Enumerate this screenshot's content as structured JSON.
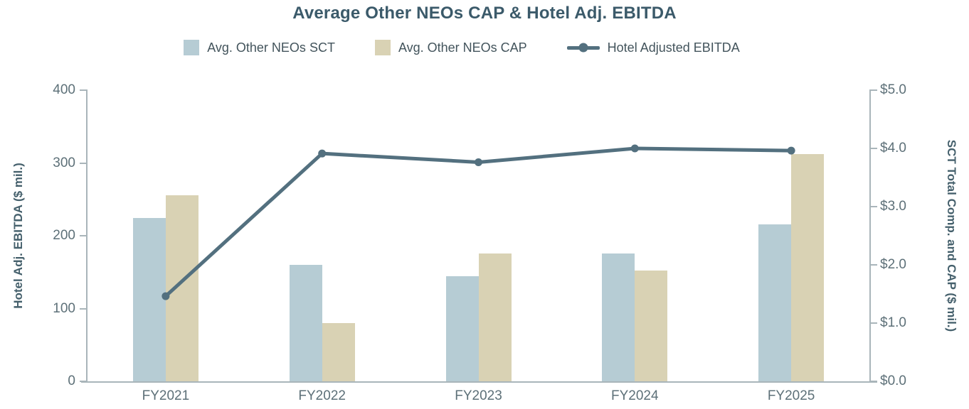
{
  "chart_data": {
    "type": "bar",
    "title": "Average Other NEOs CAP & Hotel Adj. EBITDA",
    "categories": [
      "FY2021",
      "FY2022",
      "FY2023",
      "FY2024",
      "FY2025"
    ],
    "series": [
      {
        "name": "Avg. Other NEOs SCT",
        "type": "bar",
        "axis": "right",
        "color": "#b6ccd4",
        "values": [
          2.8,
          2.0,
          1.8,
          2.2,
          2.7
        ]
      },
      {
        "name": "Avg. Other NEOs CAP",
        "type": "bar",
        "axis": "right",
        "color": "#d9d2b4",
        "values": [
          3.2,
          1.0,
          2.2,
          1.9,
          3.9
        ]
      },
      {
        "name": "Hotel Adjusted EBITDA",
        "type": "line",
        "axis": "left",
        "color": "#53707f",
        "values": [
          117,
          313,
          301,
          320,
          317
        ]
      }
    ],
    "left_axis": {
      "label": "Hotel Adj. EBITDA ($ mil.)",
      "min": 0,
      "max": 400,
      "ticks": [
        "400",
        "300",
        "200",
        "100",
        "0"
      ]
    },
    "right_axis": {
      "label": "SCT Total Comp. and CAP ($ mil.)",
      "min": 0,
      "max": 5,
      "ticks": [
        "$5.0",
        "$4.0",
        "$3.0",
        "$2.0",
        "$1.0",
        "$0.0"
      ]
    },
    "legend_position": "top",
    "grid": "off"
  }
}
